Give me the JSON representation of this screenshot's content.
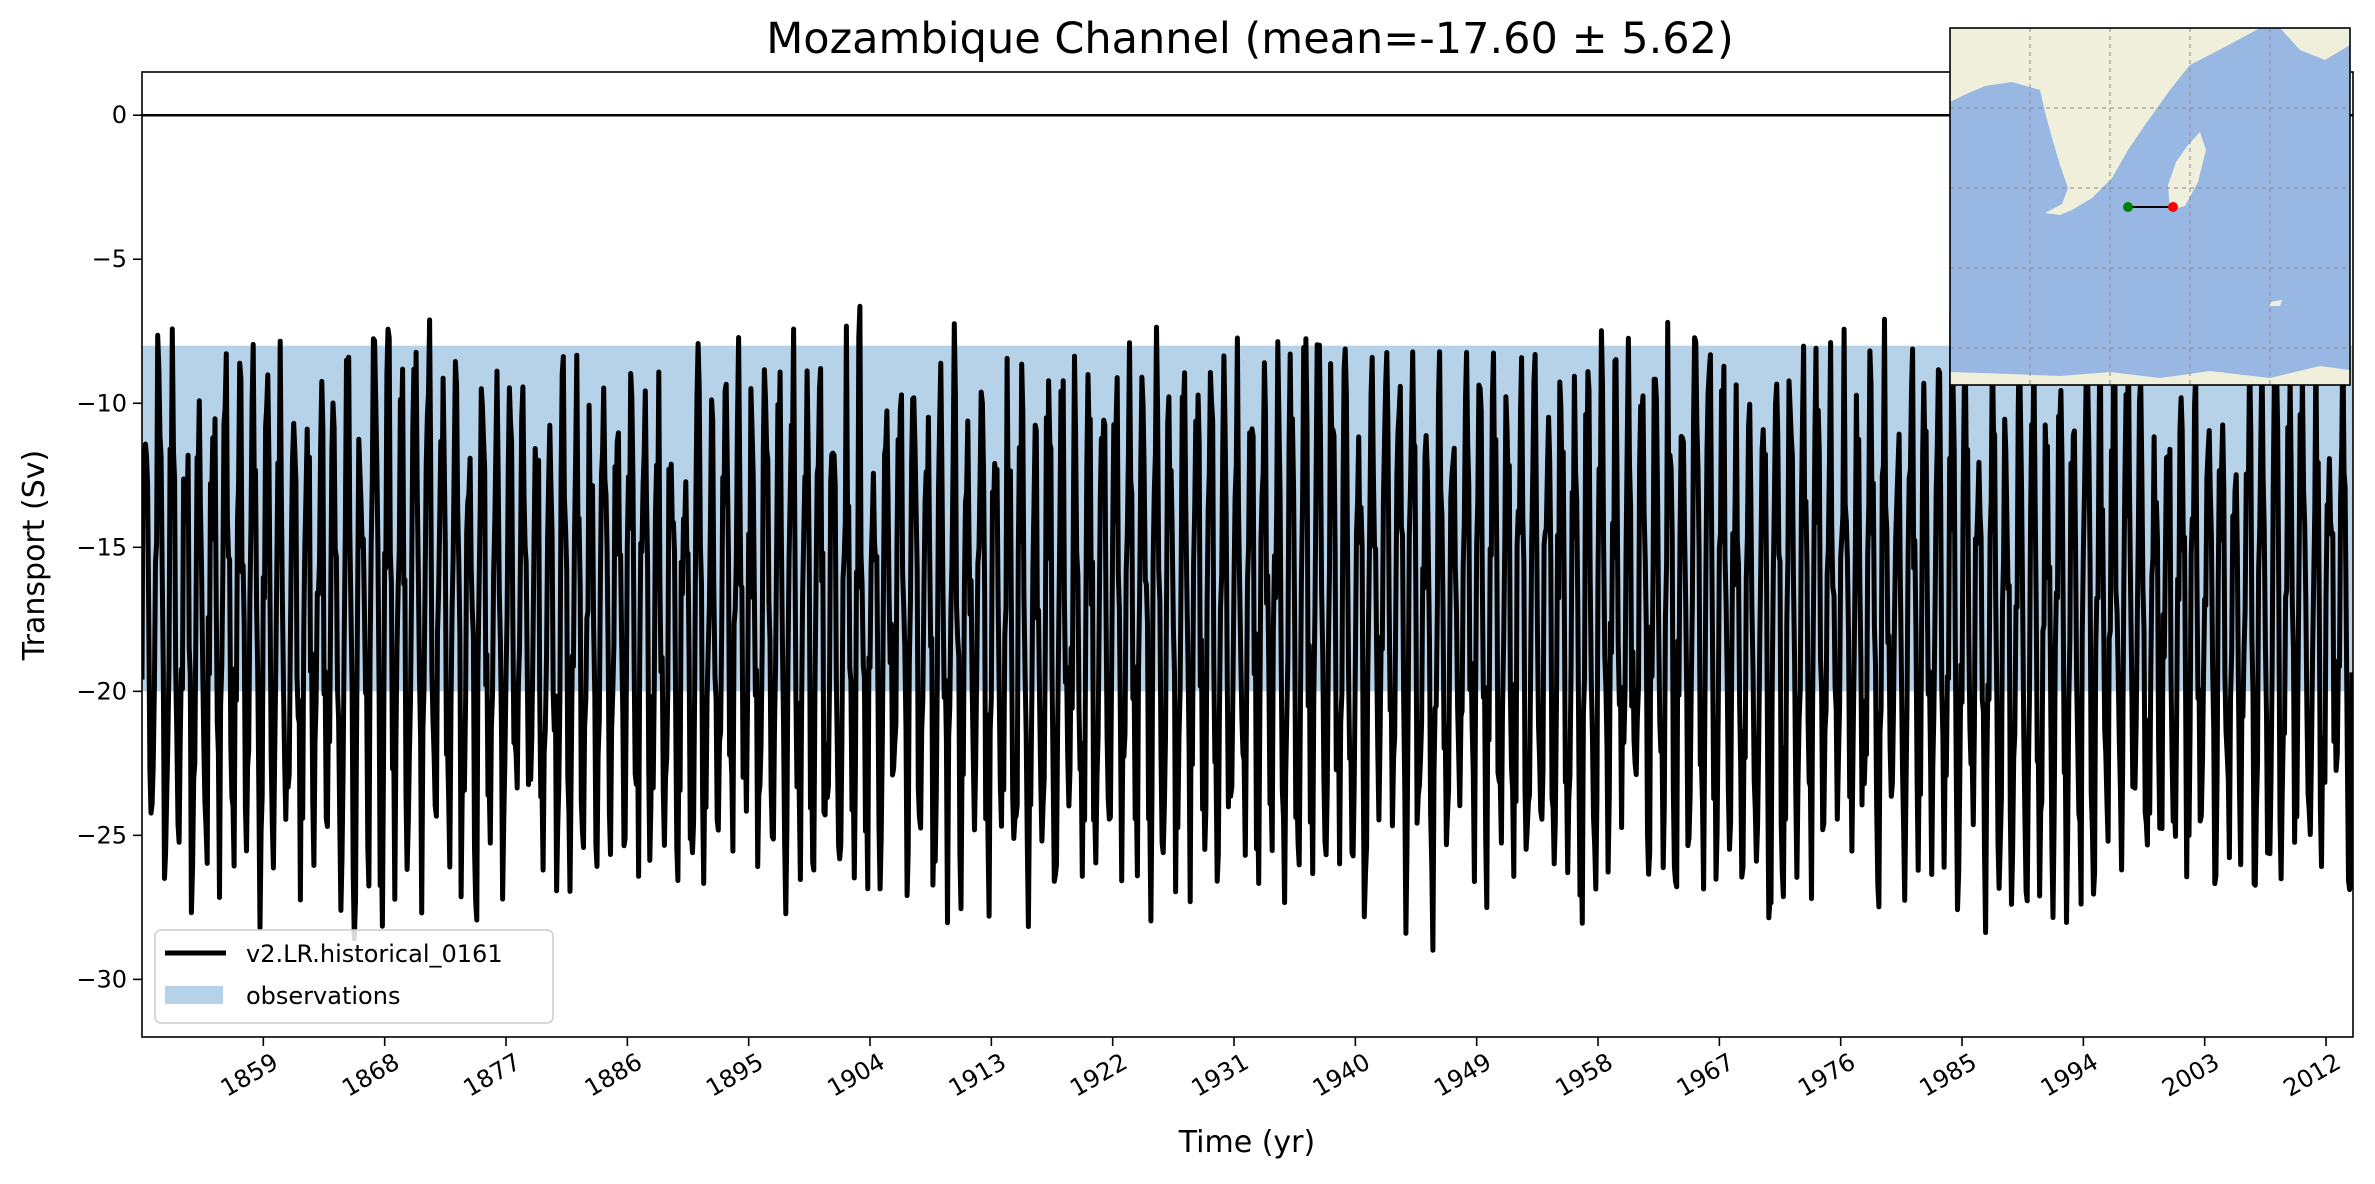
{
  "chart_data": {
    "type": "line",
    "title": "Mozambique Channel (mean=-17.60 ± 5.62)",
    "xlabel": "Time (yr)",
    "ylabel": "Transport (Sv)",
    "xlim": [
      1850,
      2014
    ],
    "ylim": [
      -32,
      1.5
    ],
    "x_ticks": [
      "1859",
      "1868",
      "1877",
      "1886",
      "1895",
      "1904",
      "1913",
      "1922",
      "1931",
      "1940",
      "1949",
      "1958",
      "1967",
      "1976",
      "1985",
      "1994",
      "2003",
      "2012"
    ],
    "y_ticks": [
      0,
      -5,
      -10,
      -15,
      -20,
      -25,
      -30
    ],
    "y_tick_labels": [
      "0",
      "−5",
      "−10",
      "−15",
      "−20",
      "−25",
      "−30"
    ],
    "zero_line": 0,
    "observations_band": {
      "name": "observations",
      "y_min": -20,
      "y_max": -8,
      "color": "#b6d2e9"
    },
    "series": [
      {
        "name": "v2.LR.historical_0161",
        "color": "#000000",
        "mean": -17.6,
        "std": 5.62,
        "x_start": 1850,
        "x_end": 2014,
        "samples_per_year": 12,
        "seed": 161
      }
    ],
    "legend": {
      "placement": "lower-left",
      "entries": [
        "v2.LR.historical_0161",
        "observations"
      ]
    },
    "inset_map": {
      "land_color": "#efefdb",
      "ocean_color": "#98b7e2",
      "section_start_color": "#008000",
      "section_end_color": "#ff0000"
    }
  }
}
